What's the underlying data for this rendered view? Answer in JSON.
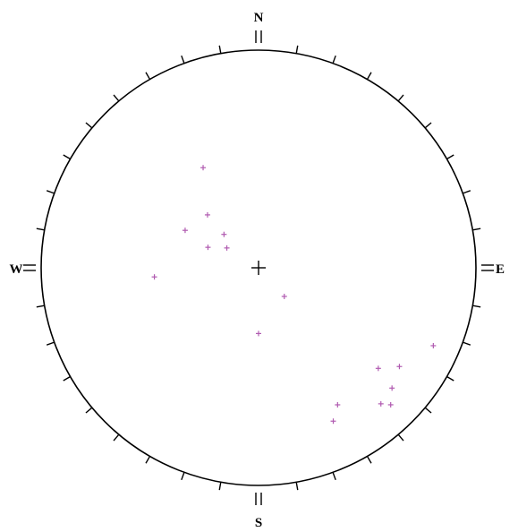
{
  "stereonet": {
    "cardinal_labels": {
      "north": "N",
      "east": "E",
      "south": "S",
      "west": "W"
    },
    "tick_interval_deg": 10,
    "point_color": "#b05ab0",
    "line_color": "#000000",
    "points": [
      {
        "trend_deg": 331,
        "radius_fraction": 0.526
      },
      {
        "trend_deg": 316,
        "radius_fraction": 0.338
      },
      {
        "trend_deg": 314,
        "radius_fraction": 0.221
      },
      {
        "trend_deg": 302,
        "radius_fraction": 0.172
      },
      {
        "trend_deg": 292,
        "radius_fraction": 0.251
      },
      {
        "trend_deg": 297,
        "radius_fraction": 0.379
      },
      {
        "trend_deg": 265,
        "radius_fraction": 0.481
      },
      {
        "trend_deg": 138,
        "radius_fraction": 0.177
      },
      {
        "trend_deg": 180,
        "radius_fraction": 0.302
      },
      {
        "trend_deg": 114,
        "radius_fraction": 0.88
      },
      {
        "trend_deg": 125,
        "radius_fraction": 0.791
      },
      {
        "trend_deg": 130,
        "radius_fraction": 0.719
      },
      {
        "trend_deg": 132,
        "radius_fraction": 0.826
      },
      {
        "trend_deg": 138,
        "radius_fraction": 0.841
      },
      {
        "trend_deg": 136,
        "radius_fraction": 0.875
      },
      {
        "trend_deg": 150,
        "radius_fraction": 0.727
      },
      {
        "trend_deg": 154,
        "radius_fraction": 0.784
      }
    ]
  }
}
